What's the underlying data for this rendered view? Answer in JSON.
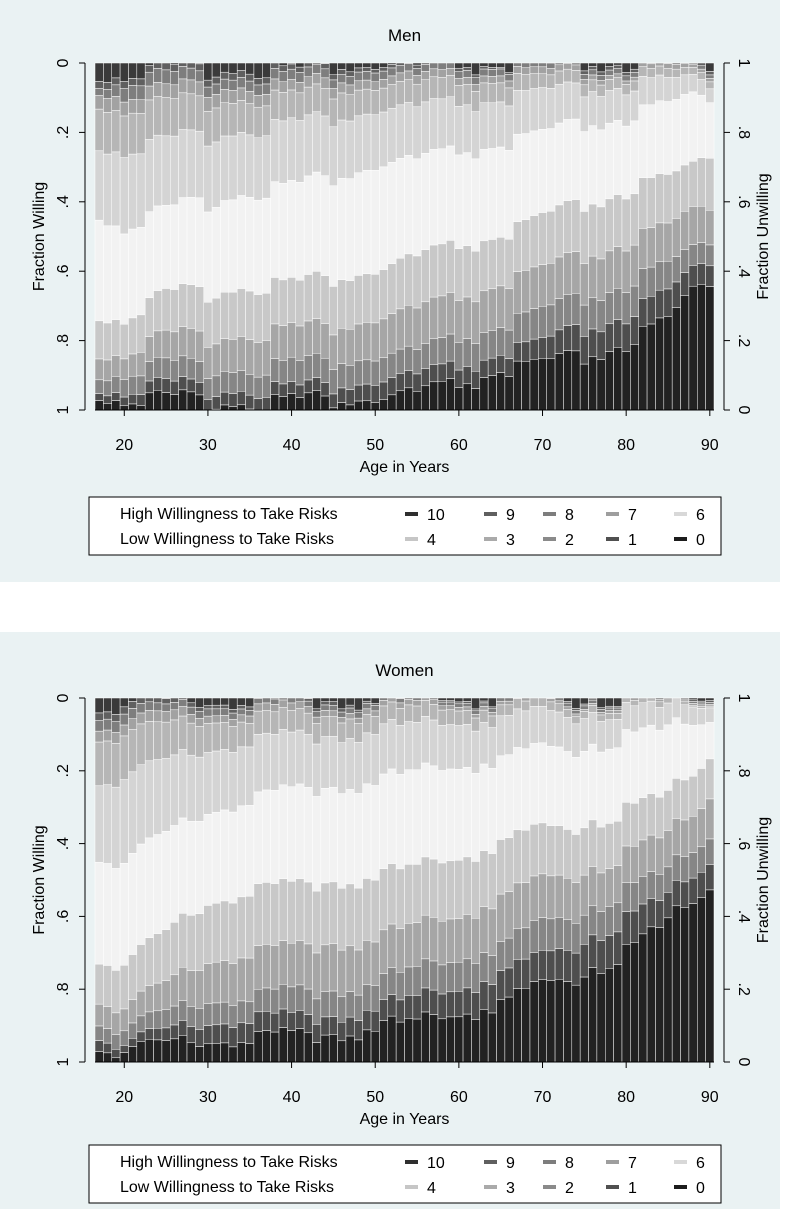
{
  "chart_data": [
    {
      "type": "bar",
      "stacked": true,
      "title": "Men",
      "xlabel": "Age in Years",
      "ylabel_left": "Fraction Willing",
      "ylabel_right": "Fraction Unwilling",
      "xlim": [
        17,
        90
      ],
      "x_ticks": [
        20,
        30,
        40,
        50,
        60,
        70,
        80,
        90
      ],
      "y_left_ticks": [
        {
          "v": 0,
          "t": "0"
        },
        {
          "v": 0.2,
          "t": ".2"
        },
        {
          "v": 0.4,
          "t": ".4"
        },
        {
          "v": 0.6,
          "t": ".6"
        },
        {
          "v": 0.8,
          "t": ".8"
        },
        {
          "v": 1,
          "t": "1"
        }
      ],
      "y_right_ticks": [
        {
          "v": 0,
          "t": "1"
        },
        {
          "v": 0.2,
          "t": ".8"
        },
        {
          "v": 0.4,
          "t": ".6"
        },
        {
          "v": 0.6,
          "t": ".4"
        },
        {
          "v": 0.8,
          "t": ".2"
        },
        {
          "v": 1,
          "t": "0"
        }
      ],
      "grid": false,
      "cumulative_boundaries": [
        {
          "age": 17,
          "b": [
            0.04,
            0.06,
            0.08,
            0.12,
            0.24,
            0.44,
            0.73,
            0.84,
            0.9,
            0.94,
            0.96
          ]
        },
        {
          "age": 20,
          "b": [
            0.03,
            0.05,
            0.09,
            0.13,
            0.25,
            0.47,
            0.73,
            0.83,
            0.89,
            0.94,
            0.965
          ]
        },
        {
          "age": 25,
          "b": [
            0.02,
            0.04,
            0.08,
            0.12,
            0.23,
            0.43,
            0.67,
            0.79,
            0.87,
            0.93,
            0.97
          ]
        },
        {
          "age": 30,
          "b": [
            0.02,
            0.04,
            0.07,
            0.11,
            0.21,
            0.4,
            0.66,
            0.79,
            0.88,
            0.94,
            0.975
          ]
        },
        {
          "age": 35,
          "b": [
            0.015,
            0.035,
            0.065,
            0.1,
            0.19,
            0.37,
            0.64,
            0.78,
            0.88,
            0.94,
            0.98
          ]
        },
        {
          "age": 40,
          "b": [
            0.015,
            0.03,
            0.06,
            0.09,
            0.17,
            0.35,
            0.63,
            0.76,
            0.86,
            0.93,
            0.965
          ]
        },
        {
          "age": 45,
          "b": [
            0.01,
            0.025,
            0.05,
            0.08,
            0.16,
            0.33,
            0.62,
            0.76,
            0.86,
            0.93,
            0.97
          ]
        },
        {
          "age": 50,
          "b": [
            0.01,
            0.02,
            0.045,
            0.07,
            0.14,
            0.3,
            0.6,
            0.74,
            0.85,
            0.92,
            0.97
          ]
        },
        {
          "age": 55,
          "b": [
            0.01,
            0.02,
            0.04,
            0.065,
            0.13,
            0.28,
            0.56,
            0.71,
            0.83,
            0.9,
            0.95
          ]
        },
        {
          "age": 60,
          "b": [
            0.01,
            0.02,
            0.04,
            0.06,
            0.12,
            0.26,
            0.53,
            0.68,
            0.8,
            0.88,
            0.93
          ]
        },
        {
          "age": 65,
          "b": [
            0.01,
            0.015,
            0.035,
            0.055,
            0.11,
            0.24,
            0.5,
            0.64,
            0.76,
            0.84,
            0.89
          ]
        },
        {
          "age": 70,
          "b": [
            0.01,
            0.015,
            0.03,
            0.05,
            0.09,
            0.21,
            0.45,
            0.6,
            0.72,
            0.81,
            0.87
          ]
        },
        {
          "age": 75,
          "b": [
            0.005,
            0.015,
            0.03,
            0.045,
            0.08,
            0.18,
            0.41,
            0.56,
            0.68,
            0.77,
            0.85
          ]
        },
        {
          "age": 80,
          "b": [
            0.005,
            0.015,
            0.03,
            0.04,
            0.07,
            0.16,
            0.37,
            0.52,
            0.64,
            0.73,
            0.81
          ]
        },
        {
          "age": 85,
          "b": [
            0.005,
            0.01,
            0.02,
            0.035,
            0.06,
            0.13,
            0.34,
            0.48,
            0.59,
            0.67,
            0.75
          ]
        },
        {
          "age": 88,
          "b": [
            0.0,
            0.01,
            0.02,
            0.03,
            0.05,
            0.1,
            0.3,
            0.43,
            0.54,
            0.6,
            0.66
          ]
        },
        {
          "age": 90,
          "b": [
            0.0,
            0.01,
            0.02,
            0.03,
            0.05,
            0.09,
            0.25,
            0.4,
            0.5,
            0.56,
            0.62
          ]
        }
      ],
      "legend": {
        "row1_label": "High Willingness to Take Risks",
        "row2_label": "Low Willingness to Take Risks",
        "items": [
          {
            "label": "10",
            "color": "#2f2f2f"
          },
          {
            "label": "9",
            "color": "#5f5f5f"
          },
          {
            "label": "8",
            "color": "#7d7d7d"
          },
          {
            "label": "7",
            "color": "#9e9e9e"
          },
          {
            "label": "6",
            "color": "#d8d8d8"
          },
          {
            "label": "4",
            "color": "#c6c6c6"
          },
          {
            "label": "3",
            "color": "#aaaaaa"
          },
          {
            "label": "2",
            "color": "#8a8a8a"
          },
          {
            "label": "1",
            "color": "#505050"
          },
          {
            "label": "0",
            "color": "#1c1c1c"
          }
        ]
      }
    },
    {
      "type": "bar",
      "stacked": true,
      "title": "Women",
      "xlabel": "Age in Years",
      "ylabel_left": "Fraction Willing",
      "ylabel_right": "Fraction Unwilling",
      "xlim": [
        17,
        90
      ],
      "x_ticks": [
        20,
        30,
        40,
        50,
        60,
        70,
        80,
        90
      ],
      "y_left_ticks": [
        {
          "v": 0,
          "t": "0"
        },
        {
          "v": 0.2,
          "t": ".2"
        },
        {
          "v": 0.4,
          "t": ".4"
        },
        {
          "v": 0.6,
          "t": ".6"
        },
        {
          "v": 0.8,
          "t": ".8"
        },
        {
          "v": 1,
          "t": "1"
        }
      ],
      "y_right_ticks": [
        {
          "v": 0,
          "t": "1"
        },
        {
          "v": 0.2,
          "t": ".8"
        },
        {
          "v": 0.4,
          "t": ".6"
        },
        {
          "v": 0.6,
          "t": ".4"
        },
        {
          "v": 0.8,
          "t": ".2"
        },
        {
          "v": 1,
          "t": "0"
        }
      ],
      "grid": false,
      "cumulative_boundaries": [
        {
          "age": 17,
          "b": [
            0.02,
            0.04,
            0.07,
            0.1,
            0.22,
            0.43,
            0.71,
            0.82,
            0.88,
            0.92,
            0.95
          ]
        },
        {
          "age": 20,
          "b": [
            0.02,
            0.04,
            0.07,
            0.1,
            0.22,
            0.45,
            0.73,
            0.85,
            0.91,
            0.95,
            0.97
          ]
        },
        {
          "age": 25,
          "b": [
            0.015,
            0.03,
            0.05,
            0.08,
            0.18,
            0.38,
            0.65,
            0.79,
            0.87,
            0.92,
            0.955
          ]
        },
        {
          "age": 30,
          "b": [
            0.01,
            0.02,
            0.04,
            0.06,
            0.14,
            0.31,
            0.56,
            0.72,
            0.83,
            0.89,
            0.94
          ]
        },
        {
          "age": 35,
          "b": [
            0.01,
            0.02,
            0.035,
            0.055,
            0.12,
            0.28,
            0.53,
            0.7,
            0.82,
            0.88,
            0.935
          ]
        },
        {
          "age": 40,
          "b": [
            0.01,
            0.015,
            0.03,
            0.05,
            0.11,
            0.26,
            0.52,
            0.69,
            0.81,
            0.88,
            0.93
          ]
        },
        {
          "age": 45,
          "b": [
            0.005,
            0.015,
            0.03,
            0.045,
            0.1,
            0.24,
            0.5,
            0.67,
            0.8,
            0.87,
            0.92
          ]
        },
        {
          "age": 50,
          "b": [
            0.005,
            0.01,
            0.025,
            0.04,
            0.09,
            0.23,
            0.49,
            0.66,
            0.78,
            0.85,
            0.905
          ]
        },
        {
          "age": 55,
          "b": [
            0.005,
            0.01,
            0.02,
            0.035,
            0.08,
            0.21,
            0.47,
            0.63,
            0.75,
            0.83,
            0.895
          ]
        },
        {
          "age": 60,
          "b": [
            0.005,
            0.01,
            0.02,
            0.03,
            0.07,
            0.19,
            0.44,
            0.6,
            0.72,
            0.8,
            0.87
          ]
        },
        {
          "age": 65,
          "b": [
            0.005,
            0.01,
            0.02,
            0.03,
            0.06,
            0.17,
            0.4,
            0.55,
            0.68,
            0.76,
            0.84
          ]
        },
        {
          "age": 70,
          "b": [
            0.0,
            0.005,
            0.015,
            0.025,
            0.05,
            0.15,
            0.37,
            0.51,
            0.63,
            0.72,
            0.8
          ]
        },
        {
          "age": 75,
          "b": [
            0.0,
            0.005,
            0.015,
            0.02,
            0.04,
            0.13,
            0.34,
            0.47,
            0.58,
            0.66,
            0.75
          ]
        },
        {
          "age": 80,
          "b": [
            0.0,
            0.005,
            0.01,
            0.02,
            0.035,
            0.11,
            0.31,
            0.43,
            0.53,
            0.61,
            0.7
          ]
        },
        {
          "age": 85,
          "b": [
            0.0,
            0.005,
            0.01,
            0.015,
            0.03,
            0.09,
            0.27,
            0.38,
            0.48,
            0.55,
            0.62
          ]
        },
        {
          "age": 88,
          "b": [
            0.0,
            0.005,
            0.01,
            0.015,
            0.02,
            0.07,
            0.21,
            0.32,
            0.42,
            0.49,
            0.56
          ]
        },
        {
          "age": 90,
          "b": [
            0.0,
            0.005,
            0.01,
            0.015,
            0.02,
            0.06,
            0.16,
            0.27,
            0.38,
            0.45,
            0.52
          ]
        }
      ],
      "legend": {
        "row1_label": "High Willingness to Take Risks",
        "row2_label": "Low Willingness to Take Risks",
        "items": [
          {
            "label": "10",
            "color": "#2f2f2f"
          },
          {
            "label": "9",
            "color": "#5f5f5f"
          },
          {
            "label": "8",
            "color": "#7d7d7d"
          },
          {
            "label": "7",
            "color": "#9e9e9e"
          },
          {
            "label": "6",
            "color": "#d8d8d8"
          },
          {
            "label": "4",
            "color": "#c6c6c6"
          },
          {
            "label": "3",
            "color": "#aaaaaa"
          },
          {
            "label": "2",
            "color": "#8a8a8a"
          },
          {
            "label": "1",
            "color": "#505050"
          },
          {
            "label": "0",
            "color": "#1c1c1c"
          }
        ]
      }
    }
  ],
  "segment_colors": [
    "#3a3a3a",
    "#606060",
    "#7e7e7e",
    "#a2a2a2",
    "#b6b6b6",
    "#d4d4d4",
    "#f2f2f2",
    "#c8c8c8",
    "#a6a6a6",
    "#868686",
    "#4e4e4e",
    "#222222"
  ]
}
